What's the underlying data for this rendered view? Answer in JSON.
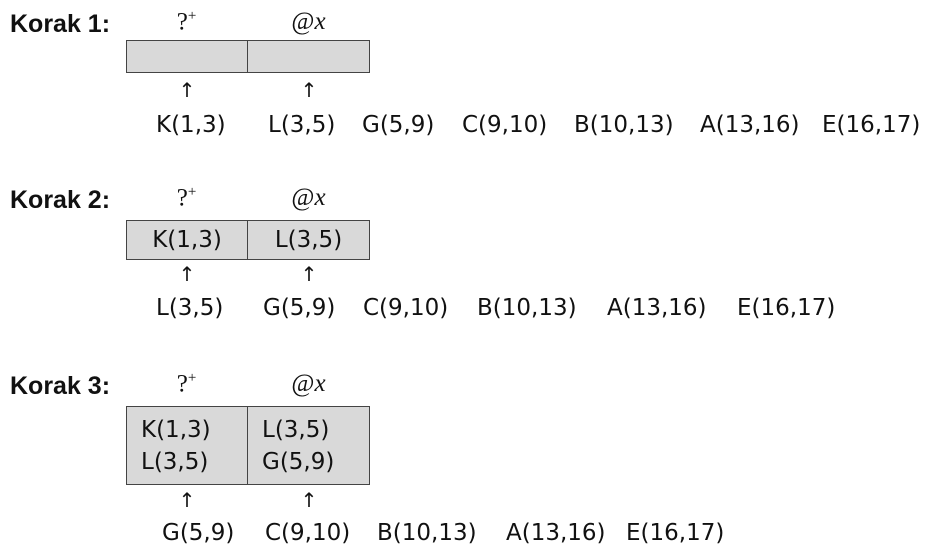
{
  "steps": [
    {
      "label": "Korak 1:",
      "header_op": "?",
      "header_op_sup": "+",
      "header_at_prefix": "@",
      "header_at_var": "x",
      "rows": [],
      "arrow": "↑",
      "sequence": [
        "K(1,3)",
        "L(3,5)",
        "G(5,9)",
        "C(9,10)",
        "B(10,13)",
        "A(13,16)",
        "E(16,17)"
      ]
    },
    {
      "label": "Korak 2:",
      "header_op": "?",
      "header_op_sup": "+",
      "header_at_prefix": "@",
      "header_at_var": "x",
      "rows": [
        [
          "K(1,3)",
          "L(3,5)"
        ]
      ],
      "arrow": "↑",
      "sequence": [
        "L(3,5)",
        "G(5,9)",
        "C(9,10)",
        "B(10,13)",
        "A(13,16)",
        "E(16,17)"
      ]
    },
    {
      "label": "Korak 3:",
      "header_op": "?",
      "header_op_sup": "+",
      "header_at_prefix": "@",
      "header_at_var": "x",
      "rows": [
        [
          "K(1,3)",
          "L(3,5)"
        ],
        [
          "L(3,5)",
          "G(5,9)"
        ]
      ],
      "arrow": "↑",
      "sequence": [
        "G(5,9)",
        "C(9,10)",
        "B(10,13)",
        "A(13,16)",
        "E(16,17)"
      ]
    }
  ]
}
